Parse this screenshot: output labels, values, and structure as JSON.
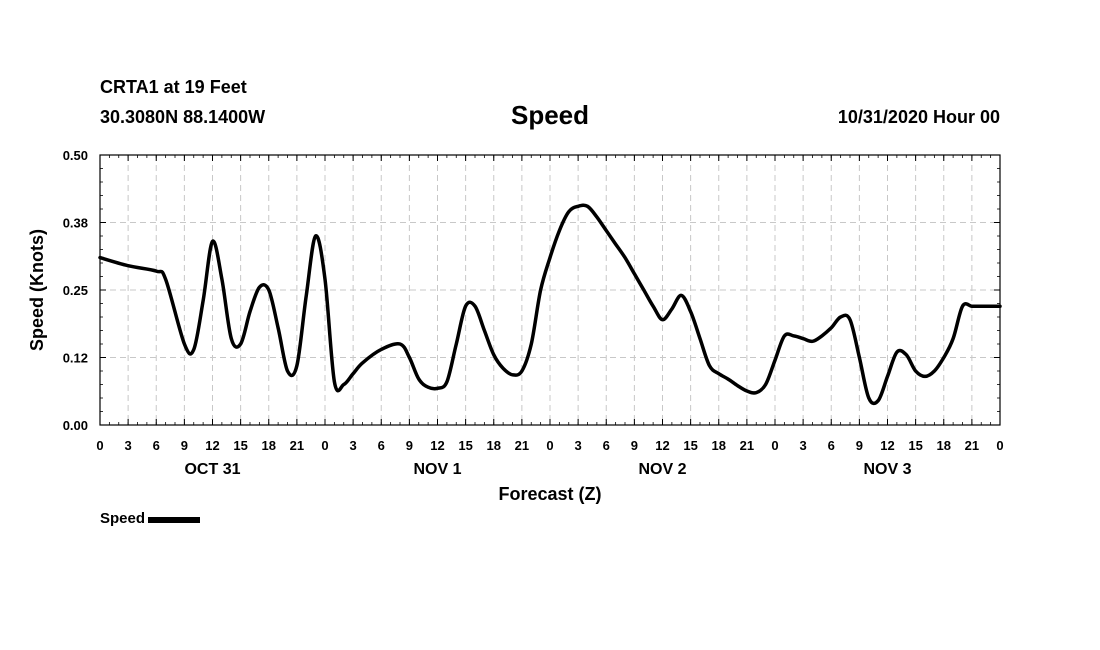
{
  "header": {
    "station": "CRTA1 at 19 Feet",
    "coords": "30.3080N 88.1400W",
    "title": "Speed",
    "datetime": "10/31/2020 Hour 00"
  },
  "legend": {
    "label": "Speed",
    "color": "#000000"
  },
  "chart_data": {
    "type": "line",
    "title": "Speed",
    "xlabel": "Forecast (Z)",
    "ylabel": "Speed (Knots)",
    "ylim": [
      0,
      0.5
    ],
    "xlim": [
      0,
      96
    ],
    "grid": true,
    "yticks": [
      "0.00",
      "0.12",
      "0.25",
      "0.38",
      "0.50"
    ],
    "ytick_values": [
      0,
      0.125,
      0.25,
      0.375,
      0.5
    ],
    "xtick_labels": [
      "0",
      "3",
      "6",
      "9",
      "12",
      "15",
      "18",
      "21",
      "0",
      "3",
      "6",
      "9",
      "12",
      "15",
      "18",
      "21",
      "0",
      "3",
      "6",
      "9",
      "12",
      "15",
      "18",
      "21",
      "0",
      "3",
      "6",
      "9",
      "12",
      "15",
      "18",
      "21",
      "0"
    ],
    "day_labels": [
      {
        "label": "OCT 31",
        "hour": 12
      },
      {
        "label": "NOV 1",
        "hour": 36
      },
      {
        "label": "NOV 2",
        "hour": 60
      },
      {
        "label": "NOV 3",
        "hour": 84
      }
    ],
    "series": [
      {
        "name": "Speed",
        "color": "#000000",
        "x": [
          0,
          3,
          6,
          7,
          9,
          10,
          11,
          12,
          13,
          14,
          15,
          16,
          17,
          18,
          19,
          20,
          21,
          22,
          23,
          24,
          25,
          26,
          27,
          28,
          30,
          32,
          33,
          34,
          35,
          36,
          37,
          38,
          39,
          40,
          41,
          42,
          43,
          44,
          45,
          46,
          47,
          48,
          49,
          50,
          51,
          52,
          53,
          54,
          55,
          56,
          57,
          58,
          59,
          60,
          61,
          62,
          63,
          64,
          65,
          66,
          67,
          68,
          69,
          70,
          71,
          72,
          73,
          74,
          75,
          76,
          77,
          78,
          79,
          80,
          81,
          82,
          83,
          84,
          85,
          86,
          87,
          88,
          89,
          90,
          91,
          92,
          93,
          94,
          95,
          96
        ],
        "y": [
          0.31,
          0.295,
          0.285,
          0.27,
          0.15,
          0.14,
          0.23,
          0.34,
          0.27,
          0.16,
          0.15,
          0.21,
          0.255,
          0.25,
          0.18,
          0.1,
          0.11,
          0.24,
          0.35,
          0.27,
          0.08,
          0.075,
          0.095,
          0.115,
          0.14,
          0.15,
          0.125,
          0.085,
          0.07,
          0.068,
          0.08,
          0.15,
          0.22,
          0.22,
          0.175,
          0.13,
          0.105,
          0.093,
          0.1,
          0.15,
          0.25,
          0.31,
          0.36,
          0.395,
          0.405,
          0.405,
          0.385,
          0.36,
          0.335,
          0.31,
          0.28,
          0.25,
          0.22,
          0.195,
          0.215,
          0.24,
          0.21,
          0.16,
          0.11,
          0.095,
          0.085,
          0.073,
          0.063,
          0.06,
          0.075,
          0.12,
          0.165,
          0.165,
          0.16,
          0.155,
          0.165,
          0.18,
          0.2,
          0.195,
          0.125,
          0.05,
          0.045,
          0.09,
          0.135,
          0.13,
          0.1,
          0.09,
          0.1,
          0.125,
          0.16,
          0.22,
          0.22,
          0.22,
          0.22,
          0.22
        ]
      }
    ]
  }
}
